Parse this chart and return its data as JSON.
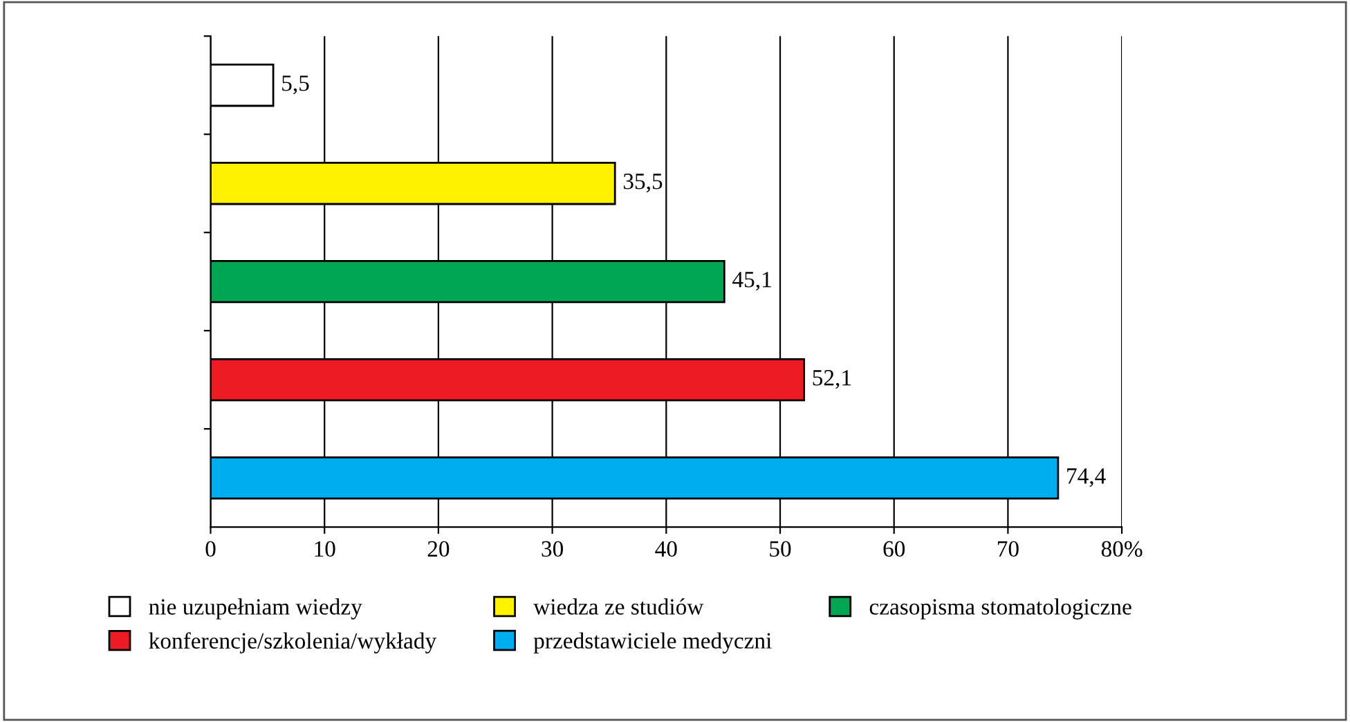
{
  "chart_data": {
    "type": "bar",
    "orientation": "horizontal",
    "categories": [
      null,
      null,
      null,
      null,
      null
    ],
    "series": [
      {
        "name": "nie uzupełniam wiedzy",
        "color": "#ffffff",
        "values": [
          5.5,
          null,
          null,
          null,
          null
        ],
        "value_labels": [
          "5,5",
          null,
          null,
          null,
          null
        ]
      },
      {
        "name": "wiedza ze studiów",
        "color": "#fff200",
        "values": [
          null,
          35.5,
          null,
          null,
          null
        ],
        "value_labels": [
          null,
          "35,5",
          null,
          null,
          null
        ]
      },
      {
        "name": "czasopisma stomatologiczne",
        "color": "#00a651",
        "values": [
          null,
          null,
          45.1,
          null,
          null
        ],
        "value_labels": [
          null,
          null,
          "45,1",
          null,
          null
        ]
      },
      {
        "name": "konferencje/szkolenia/wykłady",
        "color": "#ed1c24",
        "values": [
          null,
          null,
          null,
          52.1,
          null
        ],
        "value_labels": [
          null,
          null,
          null,
          "52,1",
          null
        ]
      },
      {
        "name": "przedstawiciele medyczni",
        "color": "#00aeef",
        "values": [
          null,
          null,
          null,
          null,
          74.4
        ],
        "value_labels": [
          null,
          null,
          null,
          null,
          "74,4"
        ]
      }
    ],
    "xlim": [
      0,
      80
    ],
    "xticks": [
      0,
      10,
      20,
      30,
      40,
      50,
      60,
      70,
      {
        "value": 80,
        "label": "80%"
      }
    ],
    "grid": "x",
    "legend": "bottom",
    "tick_labels": "x"
  }
}
